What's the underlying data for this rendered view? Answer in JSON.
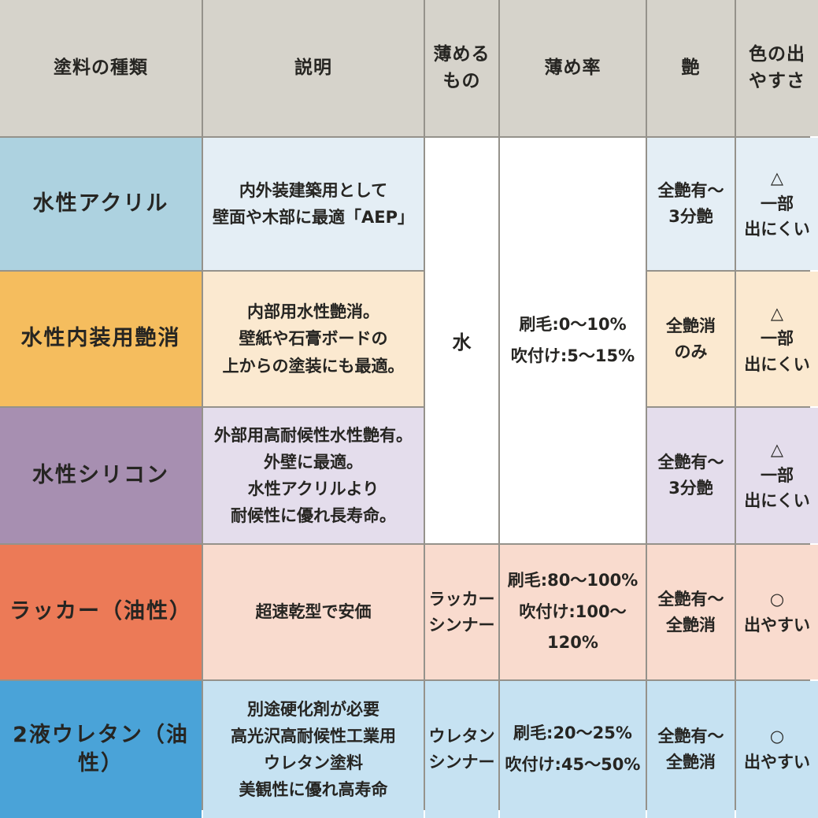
{
  "palette": {
    "border": "#95928b",
    "header_bg": "#d6d3cb",
    "text": "#262522",
    "white": "#ffffff"
  },
  "header": {
    "paint_type": "塗料の種類",
    "description": "説明",
    "thinner": "薄める\nもの",
    "dilution_rate": "薄め率",
    "gloss": "艶",
    "color_ease": "色の出\nやすさ"
  },
  "water_group_merged": {
    "thinner": "水",
    "dilution": "刷毛:0～10%\n吹付け:5～15%"
  },
  "rows": [
    {
      "name": "水性アクリル",
      "description": "内外装建築用として\n壁面や木部に最適「AEP」",
      "gloss": "全艶有～\n3分艶",
      "color_ease": "△\n一部\n出にくい",
      "name_bg": "#add2e0",
      "cell_bg": "#e4eef5"
    },
    {
      "name": "水性内装用艶消",
      "description": "内部用水性艶消。\n壁紙や石膏ボードの\n上からの塗装にも最適。",
      "gloss": "全艶消\nのみ",
      "color_ease": "△\n一部\n出にくい",
      "name_bg": "#f5bd5e",
      "cell_bg": "#fbe9d0"
    },
    {
      "name": "水性シリコン",
      "description": "外部用高耐候性水性艶有。\n外壁に最適。\n水性アクリルより\n耐候性に優れ長寿命。",
      "gloss": "全艶有～\n3分艶",
      "color_ease": "△\n一部\n出にくい",
      "name_bg": "#a78fb1",
      "cell_bg": "#e4ddec"
    },
    {
      "name": "ラッカー（油性）",
      "description": "超速乾型で安価",
      "thinner": "ラッカー\nシンナー",
      "dilution": "刷毛:80～100%\n吹付け:100～120%",
      "gloss": "全艶有～\n全艶消",
      "color_ease": "○\n出やすい",
      "name_bg": "#ec7a57",
      "cell_bg": "#f9dbce"
    },
    {
      "name": "2液ウレタン（油性）",
      "description": "別途硬化剤が必要\n高光沢高耐候性工業用\nウレタン塗料\n美観性に優れ高寿命",
      "thinner": "ウレタン\nシンナー",
      "dilution": "刷毛:20～25%\n吹付け:45～50%",
      "gloss": "全艶有～\n全艶消",
      "color_ease": "○\n出やすい",
      "name_bg": "#4aa3d8",
      "cell_bg": "#c6e2f2"
    }
  ],
  "chart_data": {
    "type": "table",
    "title": "塗料の種類比較表",
    "columns": [
      "塗料の種類",
      "説明",
      "薄めるもの",
      "薄め率",
      "艶",
      "色の出やすさ"
    ],
    "rows": [
      [
        "水性アクリル",
        "内外装建築用として壁面や木部に最適「AEP」",
        "水",
        "刷毛:0～10% 吹付け:5～15%",
        "全艶有～3分艶",
        "△ 一部出にくい"
      ],
      [
        "水性内装用艶消",
        "内部用水性艶消。壁紙や石膏ボードの上からの塗装にも最適。",
        "水",
        "刷毛:0～10% 吹付け:5～15%",
        "全艶消のみ",
        "△ 一部出にくい"
      ],
      [
        "水性シリコン",
        "外部用高耐候性水性艶有。外壁に最適。水性アクリルより耐候性に優れ長寿命。",
        "水",
        "刷毛:0～10% 吹付け:5～15%",
        "全艶有～3分艶",
        "△ 一部出にくい"
      ],
      [
        "ラッカー（油性）",
        "超速乾型で安価",
        "ラッカーシンナー",
        "刷毛:80～100% 吹付け:100～120%",
        "全艶有～全艶消",
        "○ 出やすい"
      ],
      [
        "2液ウレタン（油性）",
        "別途硬化剤が必要 高光沢高耐候性工業用 ウレタン塗料 美観性に優れ高寿命",
        "ウレタンシンナー",
        "刷毛:20～25% 吹付け:45～50%",
        "全艶有～全艶消",
        "○ 出やすい"
      ]
    ],
    "layout_hints": {
      "merged_cells": "薄めるもの・薄め率 are merged vertically across the three water-based rows",
      "grid": "on",
      "header_position": "top"
    }
  }
}
